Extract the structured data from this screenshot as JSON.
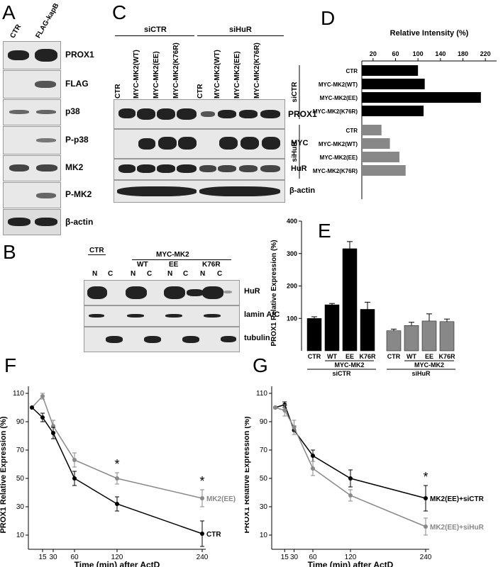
{
  "panels": {
    "A": "A",
    "B": "B",
    "C": "C",
    "D": "D",
    "E": "E",
    "F": "F",
    "G": "G"
  },
  "panel_a": {
    "cols": [
      "CTR",
      "FLAG-kapB"
    ],
    "rows": [
      "PROX1",
      "FLAG",
      "p38",
      "P-p38",
      "MK2",
      "P-MK2",
      "β-actin"
    ]
  },
  "panel_b": {
    "group": "MYC-MK2",
    "conds": [
      "CTR",
      "WT",
      "EE",
      "K76R"
    ],
    "fractions": [
      "N",
      "C",
      "N",
      "C",
      "N",
      "C",
      "N",
      "C"
    ],
    "rows": [
      "HuR",
      "lamin A/C",
      "tubulin"
    ]
  },
  "panel_c": {
    "groups": [
      "siCTR",
      "siHuR"
    ],
    "lanes": [
      "CTR",
      "MYC-MK2(WT)",
      "MYC-MK2(EE)",
      "MYC-MK2(K76R)",
      "CTR",
      "MYC-MK2(WT)",
      "MYC-MK2(EE)",
      "MYC-MK2(K76R)"
    ],
    "rows": [
      "PROX1",
      "MYC",
      "HuR",
      "β-actin"
    ]
  },
  "chart_data": [
    {
      "id": "D",
      "type": "bar",
      "orientation": "horizontal",
      "title": "Relative Intensity (%)",
      "xticks": [
        20,
        60,
        100,
        140,
        180,
        220
      ],
      "xlim": [
        0,
        240
      ],
      "groups": [
        "siCTR",
        "siHuR"
      ],
      "categories": [
        "CTR",
        "MYC-MK2(WT)",
        "MYC-MK2(EE)",
        "MYC-MK2(K76R)",
        "CTR",
        "MYC-MK2(WT)",
        "MYC-MK2(EE)",
        "MYC-MK2(K76R)"
      ],
      "values": [
        100,
        112,
        212,
        110,
        35,
        50,
        67,
        78
      ],
      "colors": [
        "#000000",
        "#000000",
        "#000000",
        "#000000",
        "#888888",
        "#888888",
        "#888888",
        "#888888"
      ]
    },
    {
      "id": "E",
      "type": "bar",
      "ylabel": "PROX1 Relative Expression (%)",
      "yticks": [
        100,
        200,
        300,
        400
      ],
      "ylim": [
        0,
        400
      ],
      "categories": [
        "CTR",
        "WT",
        "EE",
        "K76R",
        "CTR",
        "WT",
        "EE",
        "K76R"
      ],
      "group_labels": [
        "MYC-MK2",
        "MYC-MK2"
      ],
      "groups": [
        "siCTR",
        "siHuR"
      ],
      "values": [
        100,
        142,
        315,
        128,
        62,
        78,
        92,
        90
      ],
      "errors": [
        5,
        4,
        22,
        22,
        5,
        10,
        22,
        8
      ],
      "colors": [
        "#000000",
        "#000000",
        "#000000",
        "#000000",
        "#888888",
        "#888888",
        "#888888",
        "#888888"
      ]
    },
    {
      "id": "F",
      "type": "line",
      "xlabel": "Time (min) after ActD",
      "ylabel": "PROX1 Relative Expression (%)",
      "x": [
        0,
        15,
        30,
        60,
        120,
        240
      ],
      "xticks": [
        15,
        30,
        60,
        120,
        240
      ],
      "yticks": [
        10,
        30,
        50,
        70,
        90,
        110
      ],
      "ylim": [
        0,
        115
      ],
      "series": [
        {
          "name": "MK2(EE)",
          "color": "#888888",
          "values": [
            100,
            108,
            87,
            63,
            50,
            36
          ],
          "errors": [
            0,
            2,
            4,
            5,
            4,
            6
          ]
        },
        {
          "name": "CTR",
          "color": "#000000",
          "values": [
            100,
            93,
            82,
            50,
            32,
            11
          ],
          "errors": [
            0,
            3,
            4,
            5,
            5,
            9
          ]
        }
      ],
      "stars": [
        {
          "x": 120,
          "label": "*"
        },
        {
          "x": 240,
          "label": "*"
        }
      ]
    },
    {
      "id": "G",
      "type": "line",
      "xlabel": "Time (min) after ActD",
      "ylabel": "PROX1 Relative Expression (%)",
      "x": [
        0,
        15,
        30,
        60,
        120,
        240
      ],
      "xticks": [
        15,
        30,
        60,
        120,
        240
      ],
      "yticks": [
        10,
        30,
        50,
        70,
        90,
        110
      ],
      "ylim": [
        0,
        115
      ],
      "series": [
        {
          "name": "MK2(EE)+siCTR",
          "color": "#000000",
          "values": [
            100,
            102,
            84,
            66,
            50,
            36
          ],
          "errors": [
            0,
            2,
            3,
            4,
            6,
            9
          ]
        },
        {
          "name": "MK2(EE)+siHuR",
          "color": "#888888",
          "values": [
            100,
            98,
            86,
            57,
            38,
            16
          ],
          "errors": [
            0,
            4,
            5,
            5,
            4,
            6
          ]
        }
      ],
      "stars": [
        {
          "x": 240,
          "label": "*"
        }
      ]
    }
  ]
}
